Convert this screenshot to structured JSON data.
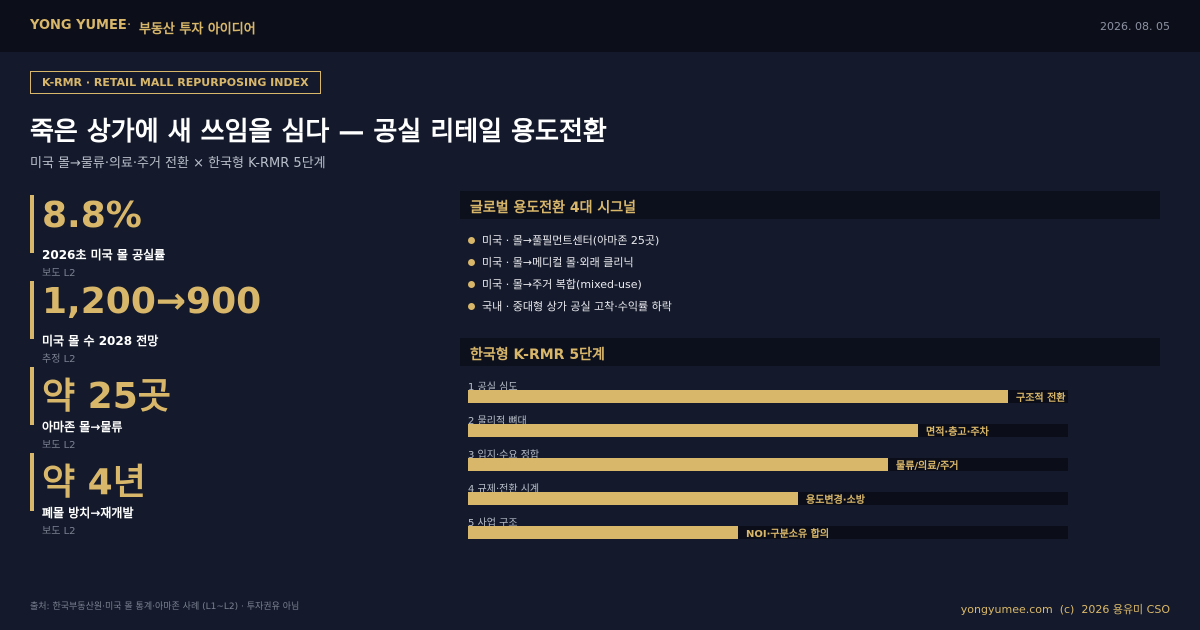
{
  "header": {
    "brand": "YONG YUMEE",
    "separator": "·",
    "section": "부동산 투자 아이디어",
    "date": "2026. 08. 05"
  },
  "tag": "K-RMR · RETAIL MALL REPURPOSING INDEX",
  "title": "죽은 상가에 새 쓰임을 심다 — 공실 리테일 용도전환",
  "subtitle": "미국 몰→물류·의료·주거 전환 × 한국형 K-RMR 5단계",
  "stats": [
    {
      "value": "8.8%",
      "label": "2026초 미국 몰 공실률",
      "note": "보도 L2"
    },
    {
      "value": "1,200→900",
      "label": "미국 몰 수 2028 전망",
      "note": "추정 L2"
    },
    {
      "value": "약 25곳",
      "label": "아마존 몰→물류",
      "note": "보도 L2"
    },
    {
      "value": "약 4년",
      "label": "폐몰 방치→재개발",
      "note": "보도 L2"
    }
  ],
  "signals": {
    "title": "글로벌 용도전환 4대 시그널",
    "items": [
      "미국 · 몰→풀필먼트센터(아마존 25곳)",
      "미국 · 몰→메디컬 몰·외래 클리닉",
      "미국 · 몰→주거 복합(mixed-use)",
      "국내 · 중대형 상가 공실 고착·수익률 하락"
    ]
  },
  "k_rmr": {
    "title": "한국형 K-RMR 5단계",
    "xlim": [
      0,
      100
    ],
    "stages": [
      {
        "label": "1 공실 심도",
        "value": 90,
        "tag": "구조적 전환"
      },
      {
        "label": "2 물리적 뼈대",
        "value": 75,
        "tag": "면적·층고·주차"
      },
      {
        "label": "3 입지·수요 정합",
        "value": 70,
        "tag": "물류/의료/주거"
      },
      {
        "label": "4 규제·전환 시계",
        "value": 55,
        "tag": "용도변경·소방"
      },
      {
        "label": "5 사업 구조",
        "value": 45,
        "tag": "NOI·구분소유 합의"
      }
    ]
  },
  "footer": {
    "source": "출처: 한국부동산원·미국 몰 통계·아마존 사례 (L1~L2) · 투자권유 아님",
    "credit": "yongyumee.com  (c)  2026 용유미 CSO"
  }
}
